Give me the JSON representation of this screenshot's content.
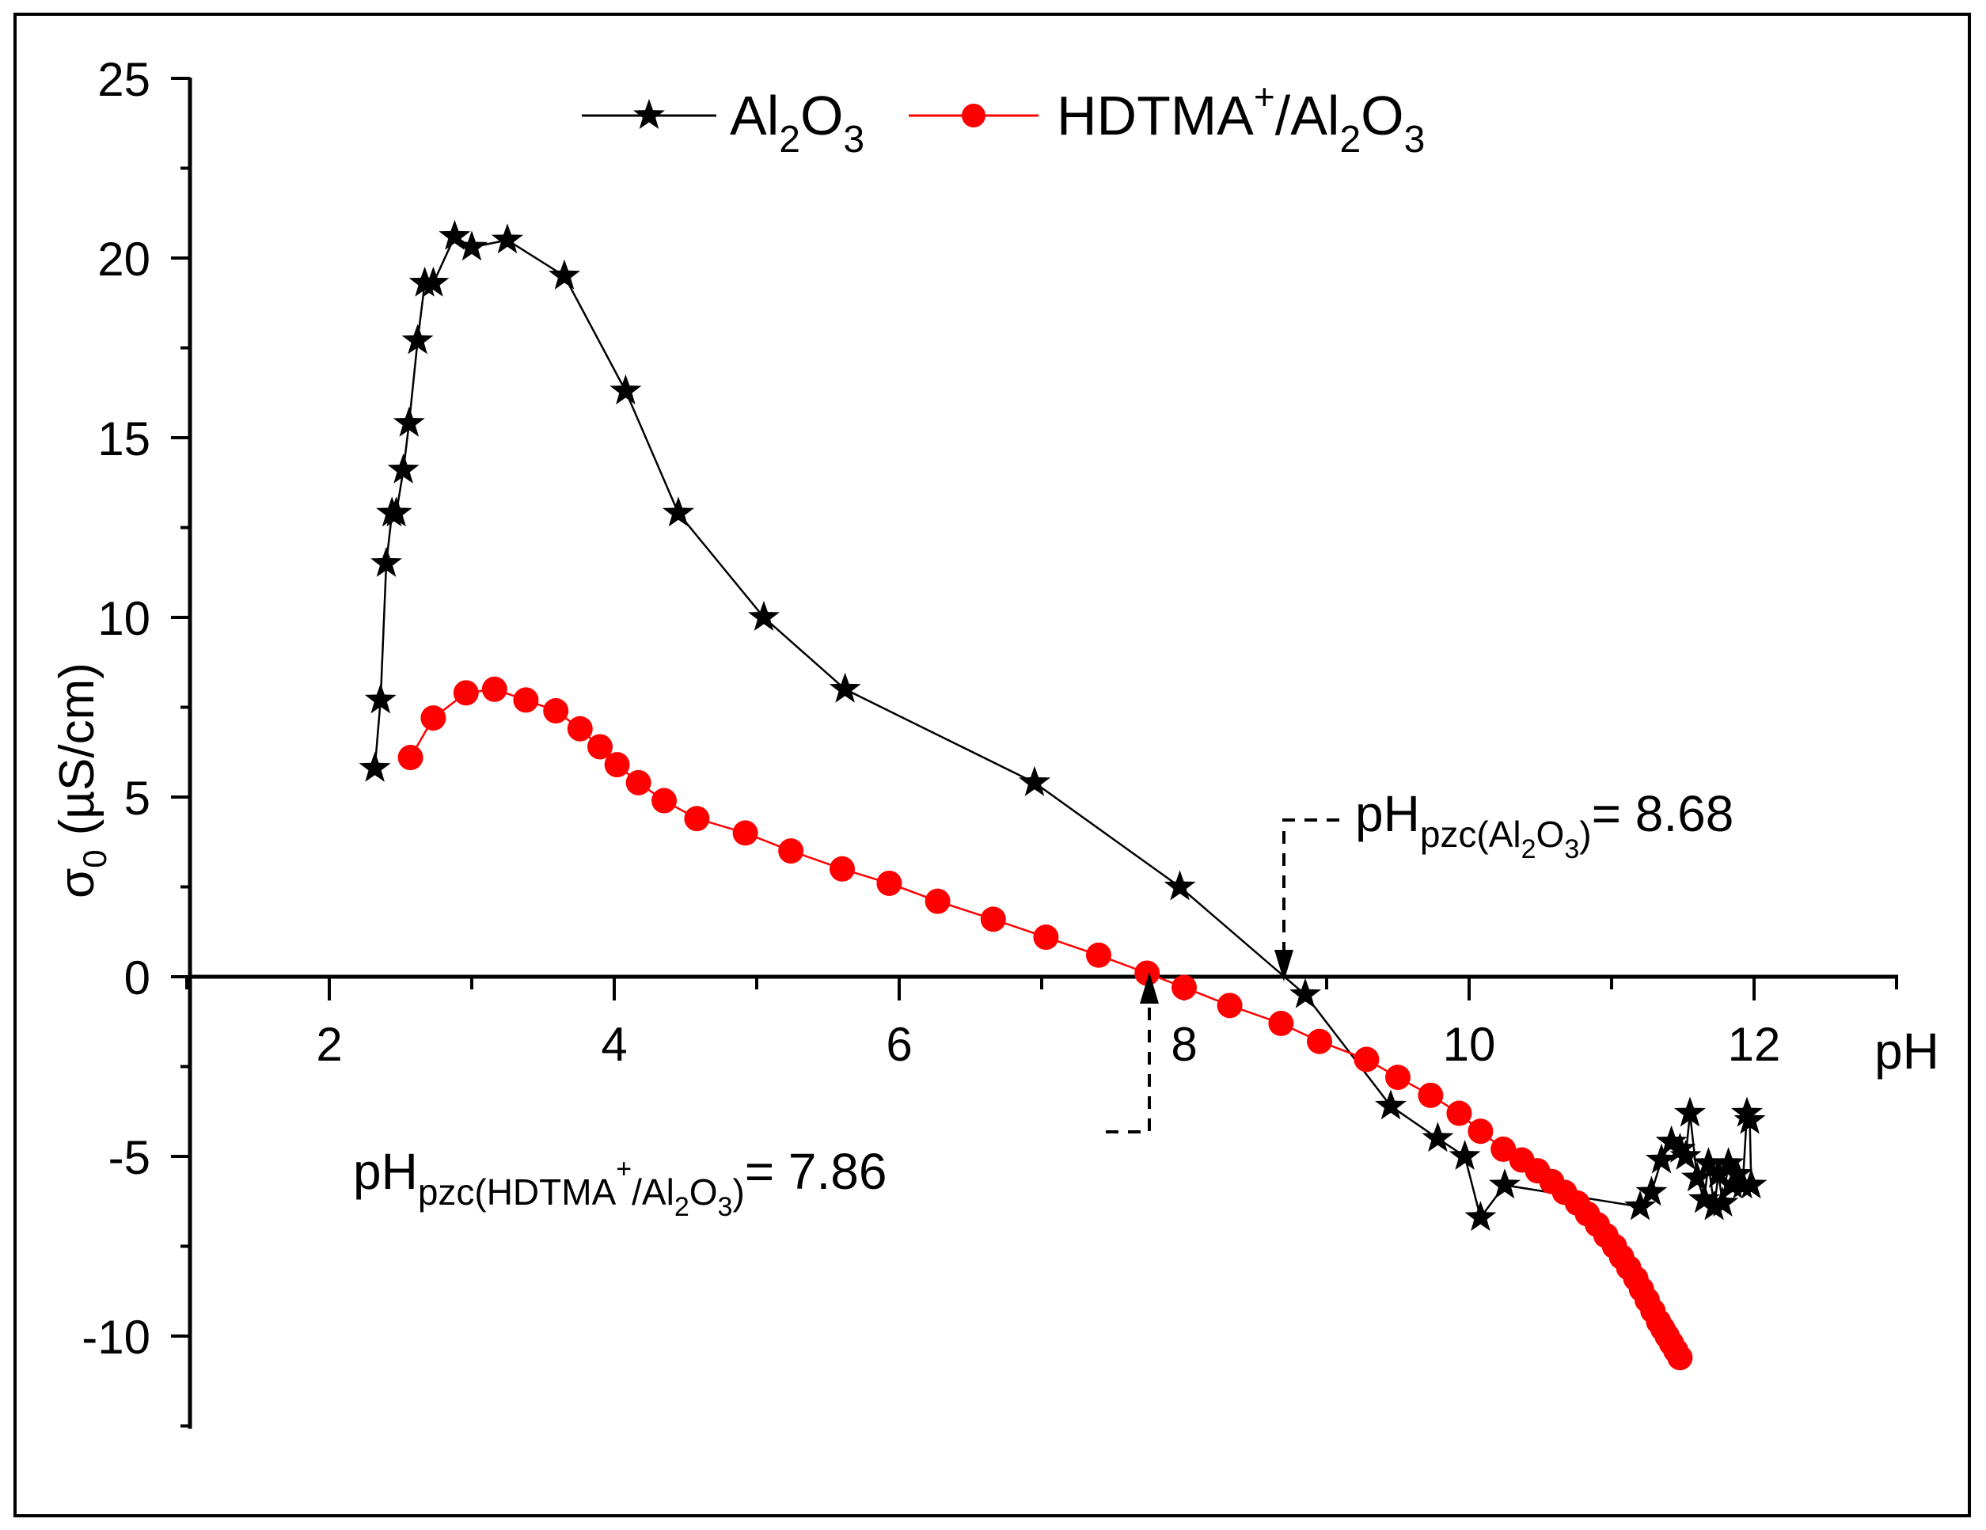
{
  "chart_data": {
    "type": "line",
    "title": "",
    "xlabel": "pH",
    "ylabel": {
      "sigma": "σ",
      "sub": "0",
      "unit": "(µS/cm)"
    },
    "xlim": [
      0.9,
      13.2
    ],
    "ylim": [
      -12.5,
      25
    ],
    "x_ticks": [
      "2",
      "4",
      "6",
      "8",
      "10",
      "12"
    ],
    "x_tick_values": [
      2,
      4,
      6,
      8,
      10,
      12
    ],
    "y_ticks": [
      "25",
      "20",
      "15",
      "10",
      "5",
      "0",
      "-5",
      "-10"
    ],
    "y_tick_values": [
      25,
      20,
      15,
      10,
      5,
      0,
      -5,
      -10
    ],
    "legend": {
      "placement": "top-center",
      "items": [
        {
          "label_main": "Al",
          "sub1": "2",
          "mid": "O",
          "sub2": "3",
          "sup": "",
          "tail": "",
          "color": "#000000",
          "marker": "star"
        },
        {
          "label_main": "HDTMA",
          "sup": "+",
          "tail": "/Al",
          "sub1": "2",
          "mid": "O",
          "sub2": "3",
          "color": "#ff0000",
          "marker": "circle"
        }
      ]
    },
    "series": [
      {
        "name": "Al2O3",
        "color": "#000000",
        "marker": "star",
        "x": [
          2.32,
          2.36,
          2.4,
          2.44,
          2.47,
          2.52,
          2.56,
          2.62,
          2.67,
          2.73,
          2.88,
          3.0,
          3.25,
          3.65,
          4.08,
          4.45,
          5.05,
          5.62,
          6.95,
          7.97,
          8.85,
          9.45,
          9.78,
          9.97,
          10.08,
          10.25,
          11.2,
          11.28,
          11.35,
          11.42,
          11.48,
          11.52,
          11.55,
          11.6,
          11.65,
          11.68,
          11.72,
          11.75,
          11.78,
          11.82,
          11.85,
          11.88,
          11.92,
          11.95,
          11.97,
          11.98
        ],
        "y": [
          5.8,
          7.7,
          11.5,
          12.9,
          12.9,
          14.1,
          15.4,
          17.7,
          19.3,
          19.3,
          20.6,
          20.3,
          20.5,
          19.5,
          16.3,
          12.9,
          10.0,
          8.0,
          5.4,
          2.5,
          -0.5,
          -3.6,
          -4.5,
          -5.0,
          -6.7,
          -5.8,
          -6.4,
          -6.0,
          -5.1,
          -4.6,
          -4.8,
          -5.0,
          -3.8,
          -5.6,
          -6.2,
          -5.2,
          -6.4,
          -5.5,
          -6.3,
          -5.2,
          -5.8,
          -5.5,
          -5.8,
          -3.8,
          -4.0,
          -5.8
        ]
      },
      {
        "name": "HDTMA+/Al2O3",
        "color": "#ff0000",
        "marker": "circle",
        "x": [
          2.57,
          2.73,
          2.96,
          3.16,
          3.38,
          3.59,
          3.76,
          3.9,
          4.02,
          4.17,
          4.35,
          4.58,
          4.92,
          5.24,
          5.6,
          5.93,
          6.27,
          6.66,
          7.03,
          7.4,
          7.74,
          8.0,
          8.32,
          8.68,
          8.95,
          9.28,
          9.5,
          9.73,
          9.93,
          10.08,
          10.24,
          10.37,
          10.48,
          10.58,
          10.67,
          10.76,
          10.83,
          10.9,
          10.96,
          11.02,
          11.07,
          11.12,
          11.17,
          11.21,
          11.25,
          11.29,
          11.33,
          11.36,
          11.39,
          11.42,
          11.45,
          11.48
        ],
        "y": [
          6.1,
          7.2,
          7.9,
          8.0,
          7.7,
          7.4,
          6.9,
          6.4,
          5.9,
          5.4,
          4.9,
          4.4,
          4.0,
          3.5,
          3.0,
          2.6,
          2.1,
          1.6,
          1.1,
          0.6,
          0.1,
          -0.3,
          -0.8,
          -1.3,
          -1.8,
          -2.3,
          -2.8,
          -3.3,
          -3.8,
          -4.3,
          -4.8,
          -5.1,
          -5.4,
          -5.7,
          -6.0,
          -6.3,
          -6.6,
          -6.9,
          -7.2,
          -7.5,
          -7.8,
          -8.1,
          -8.4,
          -8.7,
          -9.0,
          -9.3,
          -9.6,
          -9.8,
          -10.0,
          -10.2,
          -10.4,
          -10.6
        ]
      }
    ],
    "annotations": [
      {
        "name": "pzc-al2o3",
        "pH_value": 8.68,
        "text_main": "pH",
        "text_sub_a": "pzc(Al",
        "text_sub_b": "2",
        "text_sub_c": "O",
        "text_sub_d": "3",
        "text_sub_e": ")",
        "text_sup": "",
        "text_value": "= 8.68"
      },
      {
        "name": "pzc-hdtma",
        "pH_value": 7.86,
        "text_main": "pH",
        "text_sub_a": "pzc(HDTMA",
        "text_sup": "+",
        "text_sub_a2": "/Al",
        "text_sub_b": "2",
        "text_sub_c": "O",
        "text_sub_d": "3",
        "text_sub_e": ")",
        "text_value": "= 7.86"
      }
    ]
  }
}
